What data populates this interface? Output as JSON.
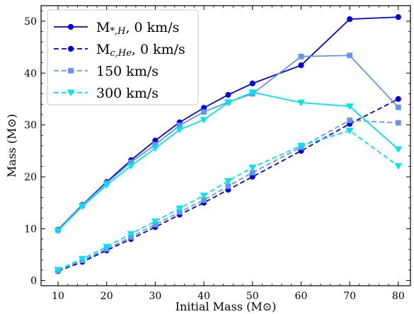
{
  "chart_data": {
    "type": "line",
    "xlabel": "Initial Mass (M⊙)",
    "ylabel": "Mass (M⊙)",
    "xlim": [
      6.5,
      82.5
    ],
    "ylim": [
      -1,
      53
    ],
    "xticks": [
      10,
      20,
      30,
      40,
      50,
      60,
      70,
      80
    ],
    "yticks": [
      0,
      10,
      20,
      30,
      40,
      50
    ],
    "grid": false,
    "legend_position": "top-left",
    "series": [
      {
        "name": "M*,H, 0 km/s",
        "color": "#0000e0",
        "style": "solid",
        "marker": "circle",
        "x": [
          10,
          15,
          20,
          25,
          30,
          35,
          40,
          45,
          50,
          60,
          70,
          80
        ],
        "y": [
          9.8,
          14.6,
          19.0,
          23.2,
          27.0,
          30.5,
          33.3,
          35.8,
          38.0,
          41.5,
          50.4,
          50.8
        ]
      },
      {
        "name": "Mc,He, 0 km/s",
        "color": "#0000e0",
        "style": "dashed",
        "marker": "circle",
        "x": [
          10,
          15,
          20,
          25,
          30,
          35,
          40,
          45,
          50,
          60,
          70,
          80
        ],
        "y": [
          1.8,
          3.6,
          5.8,
          8.0,
          10.3,
          12.7,
          15.0,
          17.5,
          20.0,
          25.0,
          30.2,
          35.0
        ]
      },
      {
        "name": "150 km/s",
        "color": "#6495ed",
        "style": "solid",
        "marker": "square",
        "x": [
          10,
          15,
          20,
          25,
          30,
          35,
          40,
          45,
          50,
          60,
          70,
          80
        ],
        "y": [
          9.7,
          14.5,
          18.8,
          22.8,
          26.2,
          29.9,
          32.5,
          34.4,
          36.0,
          43.2,
          43.4,
          33.4
        ]
      },
      {
        "name": "150 km/s dashed",
        "color": "#6495ed",
        "style": "dashed",
        "marker": "square",
        "x": [
          10,
          15,
          20,
          25,
          30,
          35,
          40,
          45,
          50,
          60,
          70,
          80
        ],
        "y": [
          1.9,
          3.9,
          6.1,
          8.4,
          10.8,
          13.2,
          15.5,
          18.2,
          20.8,
          25.7,
          30.9,
          30.4
        ]
      },
      {
        "name": "300 km/s",
        "color": "#00e5ee",
        "style": "solid",
        "marker": "triangle-down",
        "x": [
          10,
          15,
          20,
          25,
          30,
          35,
          40,
          45,
          50,
          60,
          70,
          80
        ],
        "y": [
          9.6,
          14.3,
          18.4,
          22.1,
          25.5,
          29.1,
          31.0,
          34.3,
          36.3,
          34.3,
          33.6,
          25.3
        ]
      },
      {
        "name": "300 km/s dashed",
        "color": "#00e5ee",
        "style": "dashed",
        "marker": "triangle-down",
        "x": [
          10,
          15,
          20,
          25,
          30,
          35,
          40,
          45,
          50,
          60,
          70,
          80
        ],
        "y": [
          2.1,
          4.2,
          6.5,
          9.0,
          11.4,
          13.9,
          16.4,
          19.2,
          21.8,
          26.0,
          28.9,
          22.1
        ]
      }
    ],
    "legend": [
      {
        "label": "M",
        "sub": "*,H",
        "suffix": ", 0 km/s",
        "series": 0
      },
      {
        "label": "M",
        "sub": "c,He",
        "suffix": ", 0 km/s",
        "series": 1
      },
      {
        "label": "150 km/s",
        "sub": "",
        "suffix": "",
        "series": 3
      },
      {
        "label": "300 km/s",
        "sub": "",
        "suffix": "",
        "series": 5
      }
    ]
  }
}
